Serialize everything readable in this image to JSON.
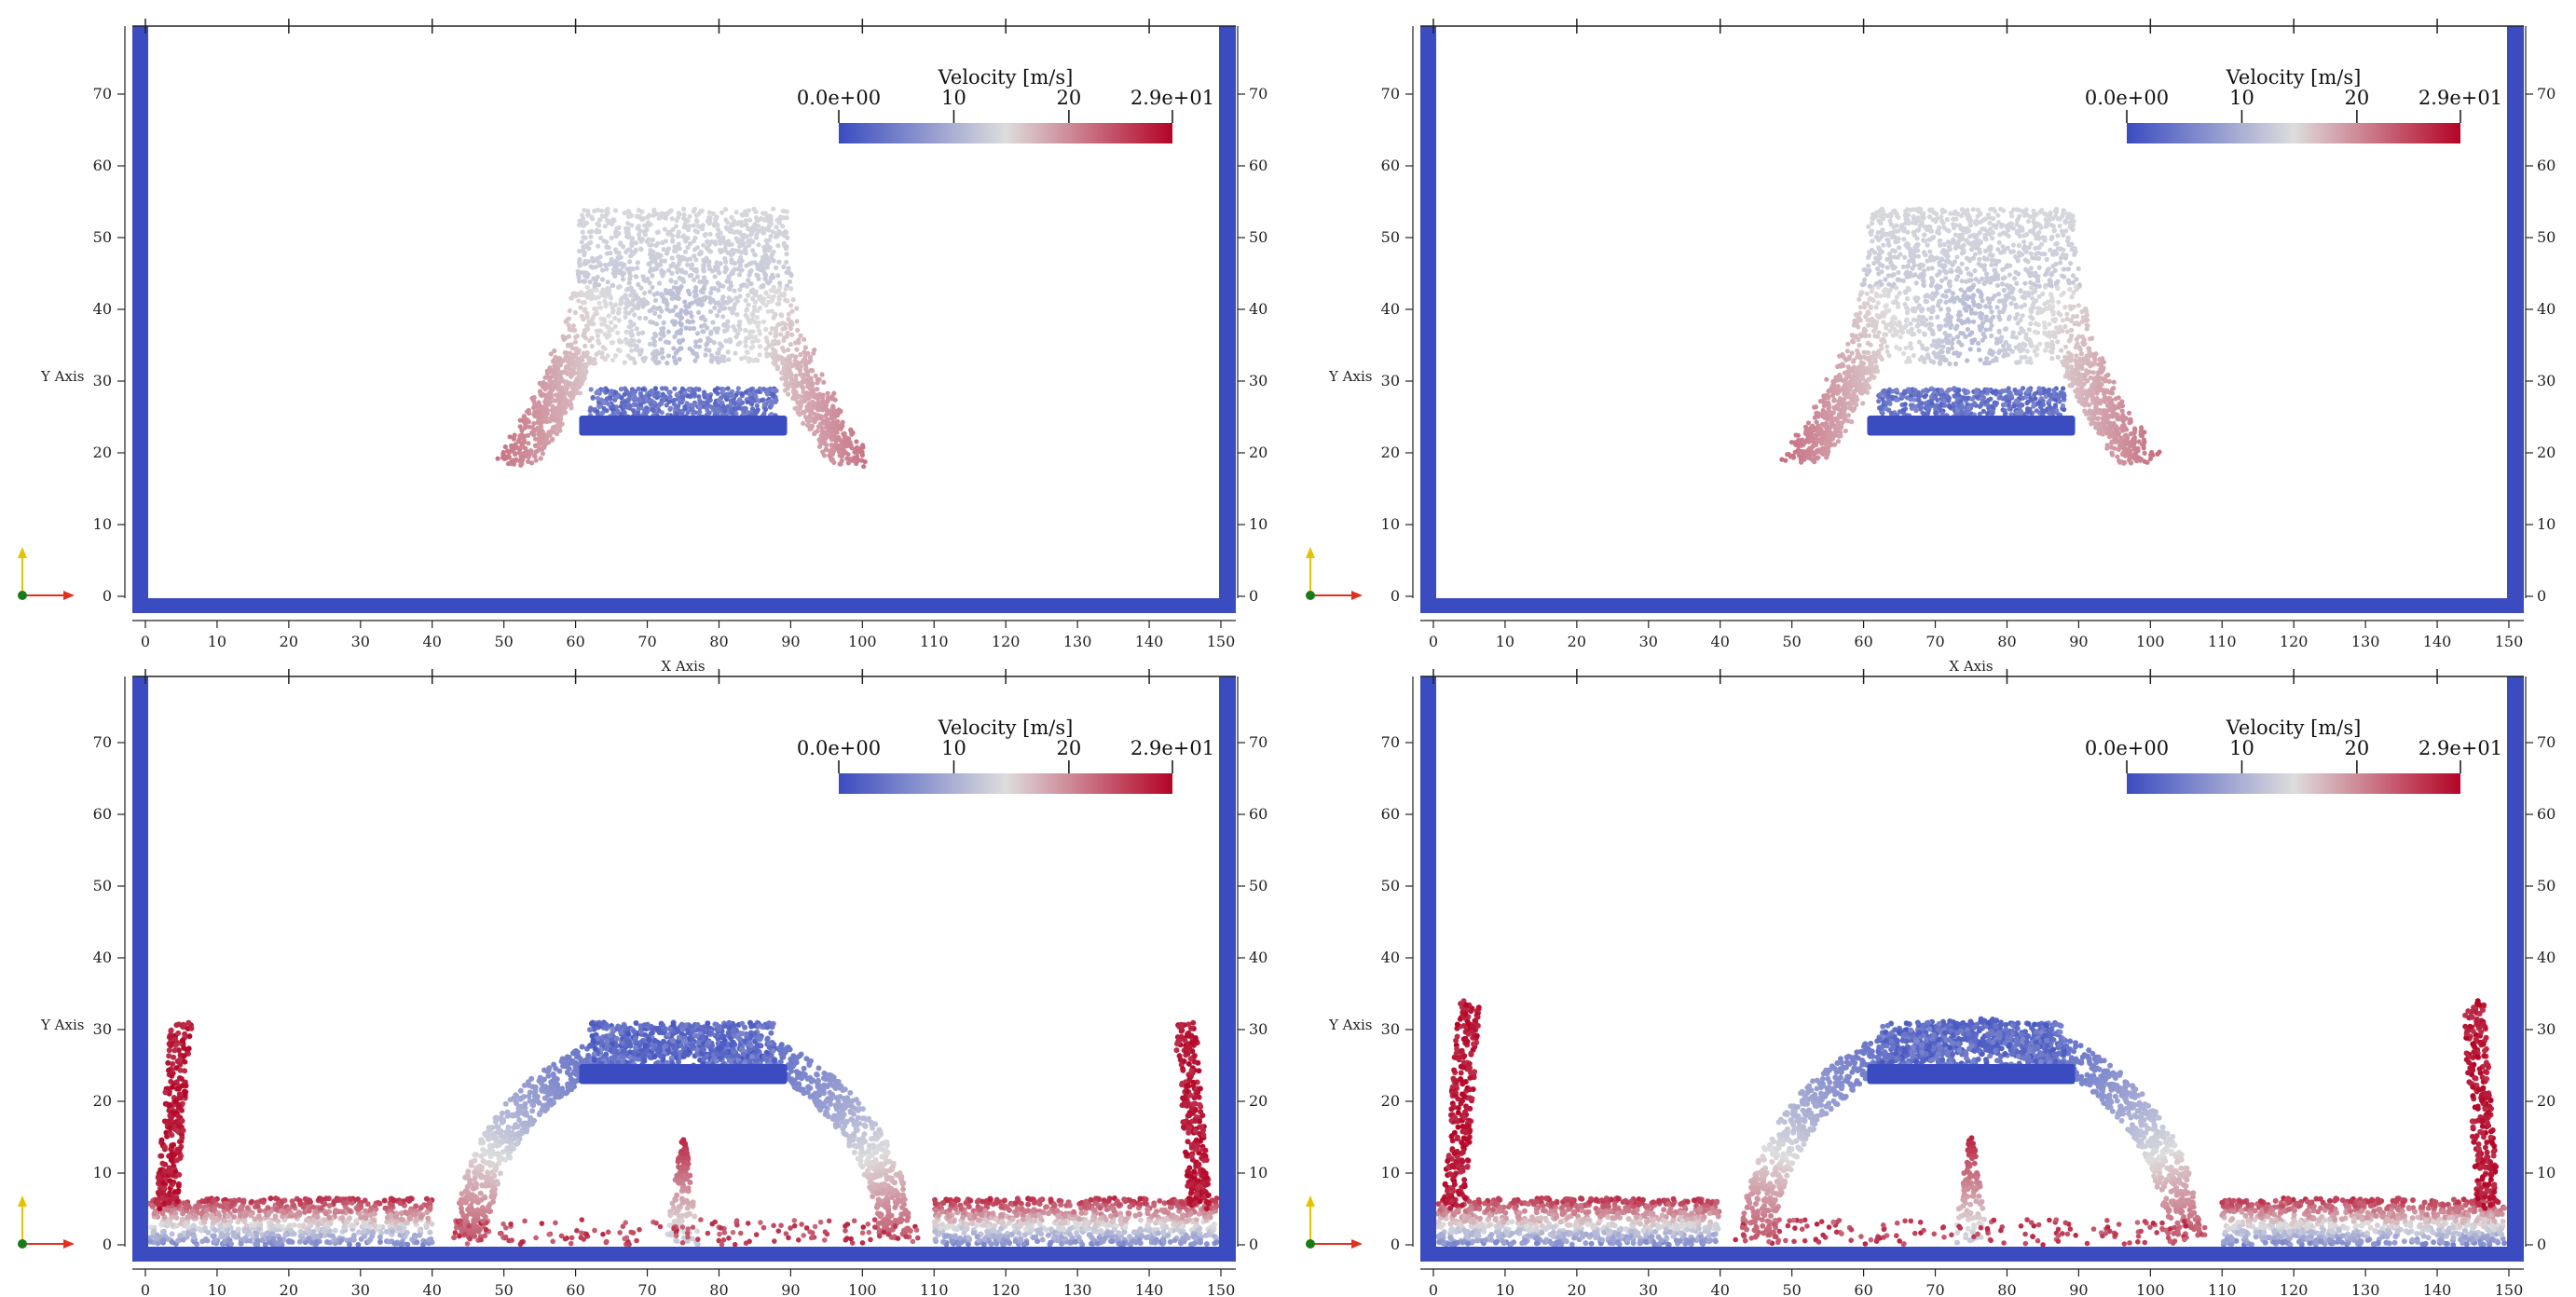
{
  "chart_data": [
    {
      "type": "scatter",
      "panel": "top-left",
      "xlabel": "X Axis",
      "ylabel": "Y Axis",
      "xlim": [
        0,
        150
      ],
      "ylim": [
        0,
        75
      ],
      "xticks": [
        "0",
        "10",
        "20",
        "30",
        "40",
        "50",
        "60",
        "70",
        "80",
        "90",
        "100",
        "110",
        "120",
        "130",
        "140",
        "150"
      ],
      "yticks": [
        "0",
        "10",
        "20",
        "30",
        "40",
        "50",
        "60",
        "70"
      ],
      "show_xlabel": true,
      "scene": "falling",
      "colorbar": {
        "title": "Velocity [m/s]",
        "labels": [
          "0.0e+00",
          "10",
          "20",
          "2.9e+01"
        ],
        "ticks": [
          0,
          10,
          20,
          29
        ],
        "range": [
          0,
          29
        ],
        "placement": "top-right"
      },
      "colormap": [
        "#3b4cc0",
        "#dddddd",
        "#b40426"
      ]
    },
    {
      "type": "scatter",
      "panel": "top-right",
      "xlabel": "X Axis",
      "ylabel": "Y Axis",
      "xlim": [
        0,
        150
      ],
      "ylim": [
        0,
        75
      ],
      "xticks": [
        "0",
        "10",
        "20",
        "30",
        "40",
        "50",
        "60",
        "70",
        "80",
        "90",
        "100",
        "110",
        "120",
        "130",
        "140",
        "150"
      ],
      "yticks": [
        "0",
        "10",
        "20",
        "30",
        "40",
        "50",
        "60",
        "70"
      ],
      "show_xlabel": true,
      "scene": "falling",
      "colorbar": {
        "title": "Velocity [m/s]",
        "labels": [
          "0.0e+00",
          "10",
          "20",
          "2.9e+01"
        ],
        "ticks": [
          0,
          10,
          20,
          29
        ],
        "range": [
          0,
          29
        ],
        "placement": "top-right"
      },
      "colormap": [
        "#3b4cc0",
        "#dddddd",
        "#b40426"
      ]
    },
    {
      "type": "scatter",
      "panel": "bottom-left",
      "xlabel": "",
      "ylabel": "Y Axis",
      "xlim": [
        0,
        150
      ],
      "ylim": [
        0,
        75
      ],
      "xticks": [
        "0",
        "10",
        "20",
        "30",
        "40",
        "50",
        "60",
        "70",
        "80",
        "90",
        "100",
        "110",
        "120",
        "130",
        "140",
        "150"
      ],
      "yticks": [
        "0",
        "10",
        "20",
        "30",
        "40",
        "50",
        "60",
        "70"
      ],
      "show_xlabel": false,
      "scene": "splash",
      "colorbar": {
        "title": "Velocity [m/s]",
        "labels": [
          "0.0e+00",
          "10",
          "20",
          "2.9e+01"
        ],
        "ticks": [
          0,
          10,
          20,
          29
        ],
        "range": [
          0,
          29
        ],
        "placement": "top-right"
      },
      "colormap": [
        "#3b4cc0",
        "#dddddd",
        "#b40426"
      ]
    },
    {
      "type": "scatter",
      "panel": "bottom-right",
      "xlabel": "",
      "ylabel": "Y Axis",
      "xlim": [
        0,
        150
      ],
      "ylim": [
        0,
        75
      ],
      "xticks": [
        "0",
        "10",
        "20",
        "30",
        "40",
        "50",
        "60",
        "70",
        "80",
        "90",
        "100",
        "110",
        "120",
        "130",
        "140",
        "150"
      ],
      "yticks": [
        "0",
        "10",
        "20",
        "30",
        "40",
        "50",
        "60",
        "70"
      ],
      "show_xlabel": false,
      "scene": "splash",
      "colorbar": {
        "title": "Velocity [m/s]",
        "labels": [
          "0.0e+00",
          "10",
          "20",
          "2.9e+01"
        ],
        "ticks": [
          0,
          10,
          20,
          29
        ],
        "range": [
          0,
          29
        ],
        "placement": "top-right"
      },
      "colormap": [
        "#3b4cc0",
        "#dddddd",
        "#b40426"
      ]
    }
  ],
  "colors": {
    "wall": "#3b4cc0",
    "axis": "#222222",
    "orientation_y": "#e6c200",
    "orientation_x": "#e03020",
    "origin": "#1a7a1a"
  }
}
